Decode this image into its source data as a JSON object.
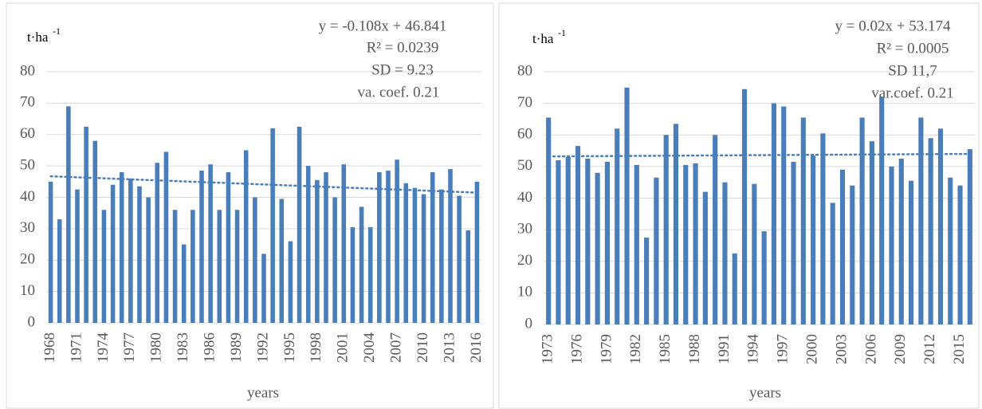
{
  "chart_data": [
    {
      "type": "bar",
      "unit": "t·ha",
      "unit_sup": "-1",
      "x_label": "years",
      "color": "#4a7ebb",
      "grid": true,
      "ylim": [
        0,
        80
      ],
      "yticks": [
        0,
        10,
        20,
        30,
        40,
        50,
        60,
        70,
        80
      ],
      "annotations": [
        "y = -0.108x + 46.841",
        "R² = 0.0239",
        "SD = 9.23",
        "va. coef. 0.21"
      ],
      "trendline": {
        "start": 46.7,
        "end": 41.5
      },
      "categories": [
        "1968",
        null,
        null,
        "1971",
        null,
        null,
        "1974",
        null,
        null,
        "1977",
        null,
        null,
        "1980",
        null,
        null,
        "1983",
        null,
        null,
        "1986",
        null,
        null,
        "1989",
        null,
        null,
        "1992",
        null,
        null,
        "1995",
        null,
        null,
        "1998",
        null,
        null,
        "2001",
        null,
        null,
        "2004",
        null,
        null,
        "2007",
        null,
        null,
        "2010",
        null,
        null,
        "2013",
        null,
        null,
        "2016"
      ],
      "values": [
        45,
        33,
        69,
        42.5,
        62.5,
        58,
        36,
        44,
        48,
        46,
        43.5,
        40,
        51,
        54.5,
        36,
        25,
        36,
        48.5,
        50.5,
        36,
        48,
        36,
        55,
        40,
        22,
        62,
        39.5,
        26,
        62.5,
        50,
        45.5,
        48,
        40,
        50.5,
        30.5,
        37,
        30.5,
        48,
        48.5,
        52,
        44.5,
        43,
        41,
        48,
        42.5,
        49,
        40.5,
        29.5,
        45
      ]
    },
    {
      "type": "bar",
      "unit": "t·ha",
      "unit_sup": "-1",
      "x_label": "years",
      "color": "#4a7ebb",
      "grid": true,
      "ylim": [
        0,
        80
      ],
      "yticks": [
        0,
        10,
        20,
        30,
        40,
        50,
        60,
        70,
        80
      ],
      "annotations": [
        "y = 0.02x + 53.174",
        "R² = 0.0005",
        "SD 11,7",
        "var.coef. 0.21"
      ],
      "trendline": {
        "start": 53.2,
        "end": 54.0
      },
      "categories": [
        "1973",
        null,
        null,
        "1976",
        null,
        null,
        "1979",
        null,
        null,
        "1982",
        null,
        null,
        "1985",
        null,
        null,
        "1988",
        null,
        null,
        "1991",
        null,
        null,
        "1994",
        null,
        null,
        "1997",
        null,
        null,
        "2000",
        null,
        null,
        "2003",
        null,
        null,
        "2006",
        null,
        null,
        "2009",
        null,
        null,
        "2012",
        null,
        null,
        "2015",
        null
      ],
      "values": [
        65.5,
        52,
        53,
        56.5,
        52.5,
        48,
        51.5,
        62,
        75,
        50.5,
        27.5,
        46.5,
        60,
        63.5,
        50.5,
        51,
        42,
        60,
        45,
        22.5,
        74.5,
        44.5,
        29.5,
        70,
        69,
        51.5,
        65.5,
        53.5,
        60.5,
        38.5,
        49,
        44,
        65.5,
        58,
        72,
        50,
        52.5,
        45.5,
        65.5,
        59,
        62,
        46.5,
        44,
        55.5
      ]
    }
  ]
}
